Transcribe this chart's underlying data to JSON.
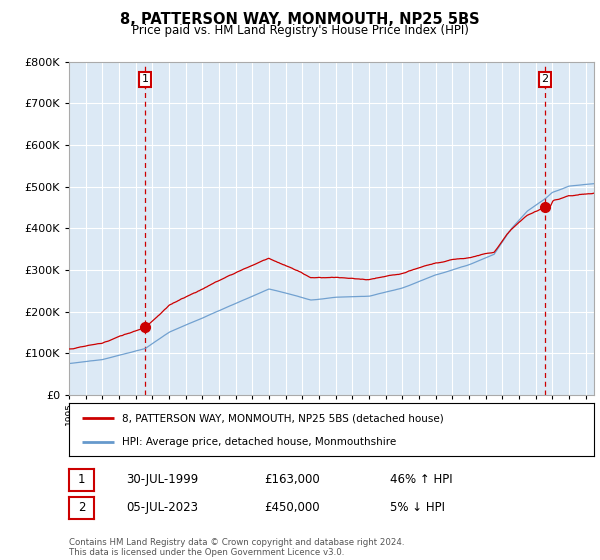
{
  "title": "8, PATTERSON WAY, MONMOUTH, NP25 5BS",
  "subtitle": "Price paid vs. HM Land Registry's House Price Index (HPI)",
  "ylim": [
    0,
    800000
  ],
  "xlim_start": 1995.0,
  "xlim_end": 2026.5,
  "sale1_year": 1999.58,
  "sale1_price": 163000,
  "sale1_label": "1",
  "sale1_date": "30-JUL-1999",
  "sale1_hpi_rel": "46% ↑ HPI",
  "sale2_year": 2023.54,
  "sale2_price": 450000,
  "sale2_label": "2",
  "sale2_date": "05-JUL-2023",
  "sale2_hpi_rel": "5% ↓ HPI",
  "legend_label_red": "8, PATTERSON WAY, MONMOUTH, NP25 5BS (detached house)",
  "legend_label_blue": "HPI: Average price, detached house, Monmouthshire",
  "footer": "Contains HM Land Registry data © Crown copyright and database right 2024.\nThis data is licensed under the Open Government Licence v3.0.",
  "red_color": "#cc0000",
  "blue_color": "#6699cc",
  "chart_bg_color": "#dce9f5",
  "fig_bg_color": "#ffffff",
  "grid_color": "#ffffff",
  "sale_marker_color": "#cc0000",
  "annotation_box_color": "#cc0000",
  "hpi_base": 75000,
  "prop_base": 110000,
  "sale1_hpi_price": 111644,
  "sale2_hpi_price": 473684
}
